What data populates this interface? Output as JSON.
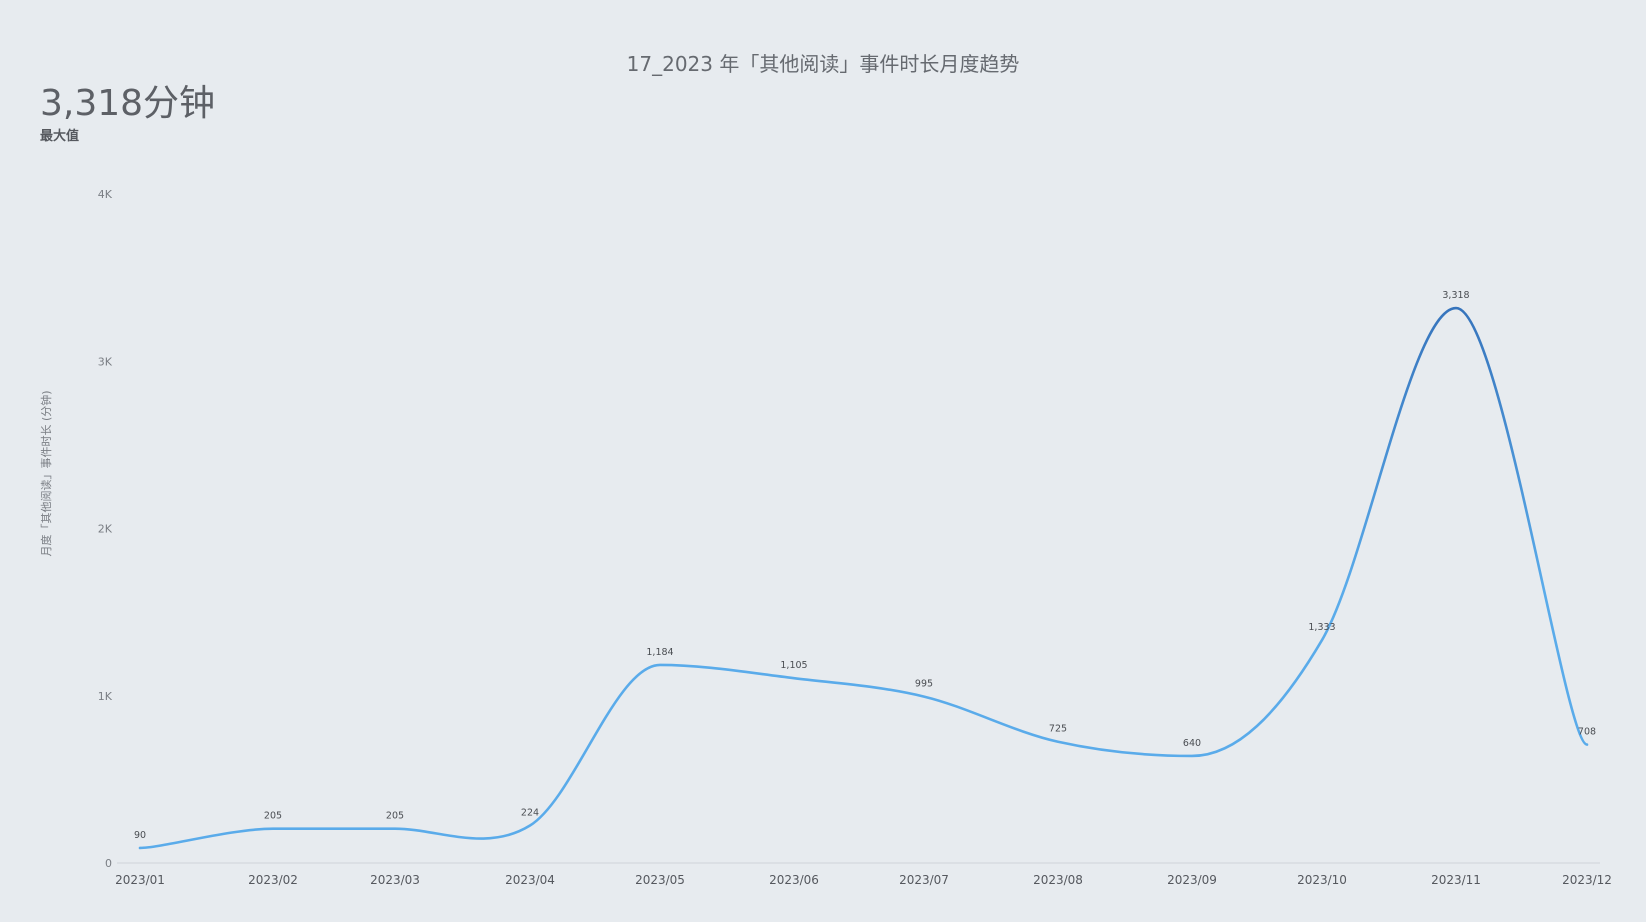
{
  "title": "17_2023 年「其他阅读」事件时长月度趋势",
  "kpi": {
    "value": "3,318分钟",
    "label": "最大值"
  },
  "chart_data": {
    "type": "line",
    "categories": [
      "2023/01",
      "2023/02",
      "2023/03",
      "2023/04",
      "2023/05",
      "2023/06",
      "2023/07",
      "2023/08",
      "2023/09",
      "2023/10",
      "2023/11",
      "2023/12"
    ],
    "series": [
      {
        "values": [
          90,
          205,
          205,
          224,
          1184,
          1105,
          995,
          725,
          640,
          1333,
          3318,
          708
        ],
        "data_labels": [
          "90",
          "205",
          "205",
          "224",
          "1,184",
          "1,105",
          "995",
          "725",
          "640",
          "1,333",
          "3,318",
          "708"
        ]
      }
    ],
    "ylabel": "月度「其他阅读」事件时长 (分钟)",
    "ylim": [
      0,
      4000
    ],
    "yticks": [
      {
        "value": 0,
        "label": "0"
      },
      {
        "value": 1000,
        "label": "1K"
      },
      {
        "value": 2000,
        "label": "2K"
      },
      {
        "value": 3000,
        "label": "3K"
      },
      {
        "value": 4000,
        "label": "4K"
      }
    ],
    "grid": false,
    "colors": {
      "line_low": "#5aabea",
      "line_high": "#2f69b3",
      "axis": "#cfd3d8"
    }
  }
}
